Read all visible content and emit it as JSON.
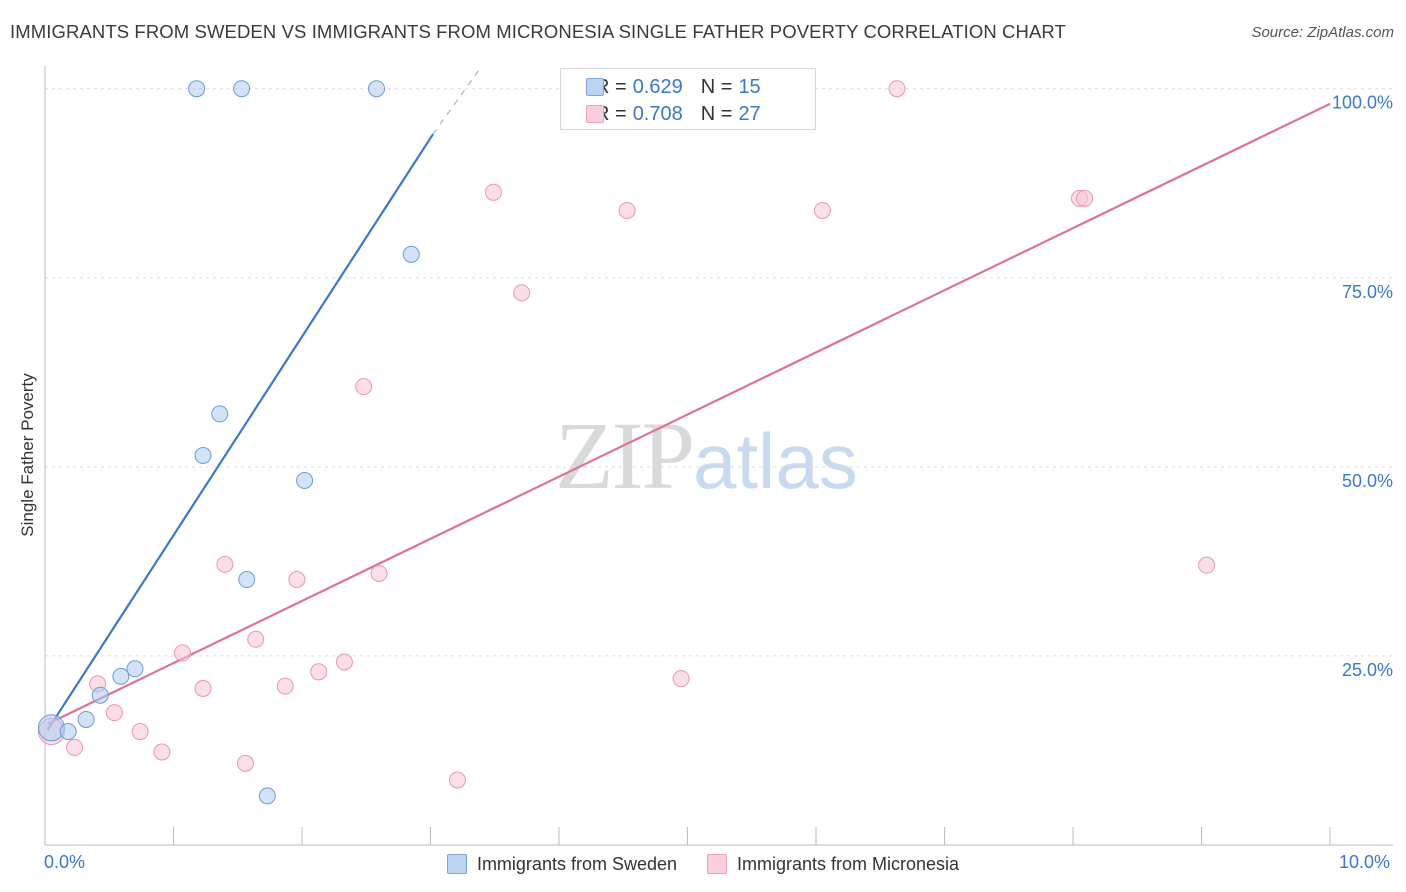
{
  "header": {
    "title": "IMMIGRANTS FROM SWEDEN VS IMMIGRANTS FROM MICRONESIA SINGLE FATHER POVERTY CORRELATION CHART",
    "source": "Source: ZipAtlas.com"
  },
  "watermark": {
    "zip": "ZIP",
    "atlas": "atlas"
  },
  "legend_top": {
    "rows": [
      {
        "r_label": "R =",
        "r_value": "0.629",
        "n_label": "N =",
        "n_value": "15"
      },
      {
        "r_label": "R =",
        "r_value": "0.708",
        "n_label": "N =",
        "n_value": "27"
      }
    ]
  },
  "chart_data": {
    "type": "scatter",
    "title": "IMMIGRANTS FROM SWEDEN VS IMMIGRANTS FROM MICRONESIA SINGLE FATHER POVERTY CORRELATION CHART",
    "xlabel": "",
    "ylabel": "Single Father Poverty",
    "xlim": [
      0,
      10
    ],
    "ylim": [
      0,
      103
    ],
    "x_tick_labels": [
      "0.0%",
      "10.0%"
    ],
    "y_ticks": [
      25,
      50,
      75,
      100
    ],
    "y_tick_labels": [
      "25.0%",
      "50.0%",
      "75.0%",
      "100.0%"
    ],
    "grid": true,
    "legend_position": "bottom",
    "colors": {
      "sweden": "#3a78c9",
      "micronesia": "#e07099"
    },
    "series": [
      {
        "name": "Immigrants from Sweden",
        "r": 0.629,
        "n": 15,
        "points": [
          {
            "x": 0.05,
            "y": 15.5,
            "size": "large"
          },
          {
            "x": 0.18,
            "y": 15.0
          },
          {
            "x": 0.32,
            "y": 16.6
          },
          {
            "x": 0.43,
            "y": 19.8
          },
          {
            "x": 0.59,
            "y": 22.3
          },
          {
            "x": 0.7,
            "y": 23.3
          },
          {
            "x": 1.18,
            "y": 100.0
          },
          {
            "x": 1.23,
            "y": 51.5
          },
          {
            "x": 1.36,
            "y": 57.0
          },
          {
            "x": 1.53,
            "y": 100.0
          },
          {
            "x": 1.57,
            "y": 35.1
          },
          {
            "x": 1.73,
            "y": 6.5
          },
          {
            "x": 2.02,
            "y": 48.2
          },
          {
            "x": 2.58,
            "y": 100.0
          },
          {
            "x": 2.85,
            "y": 78.1
          }
        ],
        "trend": {
          "x0": 0.02,
          "y0": 15.2,
          "x1": 3.02,
          "y1": 94.0,
          "dash_to_x": 3.4,
          "dash_to_y": 103.0
        }
      },
      {
        "name": "Immigrants from Micronesia",
        "r": 0.708,
        "n": 27,
        "points": [
          {
            "x": 0.05,
            "y": 15.0,
            "size": "large"
          },
          {
            "x": 0.23,
            "y": 12.9
          },
          {
            "x": 0.41,
            "y": 21.3
          },
          {
            "x": 0.54,
            "y": 17.5
          },
          {
            "x": 0.74,
            "y": 15.0
          },
          {
            "x": 0.91,
            "y": 12.3
          },
          {
            "x": 1.07,
            "y": 25.4
          },
          {
            "x": 1.23,
            "y": 20.7
          },
          {
            "x": 1.4,
            "y": 37.1
          },
          {
            "x": 1.56,
            "y": 10.8
          },
          {
            "x": 1.64,
            "y": 27.2
          },
          {
            "x": 1.87,
            "y": 21.0
          },
          {
            "x": 1.96,
            "y": 35.1
          },
          {
            "x": 2.13,
            "y": 22.9
          },
          {
            "x": 2.33,
            "y": 24.2
          },
          {
            "x": 2.48,
            "y": 60.6
          },
          {
            "x": 2.6,
            "y": 35.9
          },
          {
            "x": 3.21,
            "y": 8.6
          },
          {
            "x": 3.49,
            "y": 86.3
          },
          {
            "x": 3.71,
            "y": 73.0
          },
          {
            "x": 4.53,
            "y": 83.9
          },
          {
            "x": 4.95,
            "y": 22.0
          },
          {
            "x": 6.05,
            "y": 83.9
          },
          {
            "x": 6.63,
            "y": 100.0
          },
          {
            "x": 8.05,
            "y": 85.5
          },
          {
            "x": 8.09,
            "y": 85.5
          },
          {
            "x": 9.04,
            "y": 37.0
          }
        ],
        "trend": {
          "x0": 0.02,
          "y0": 16.0,
          "x1": 10.0,
          "y1": 98.0
        }
      }
    ]
  }
}
